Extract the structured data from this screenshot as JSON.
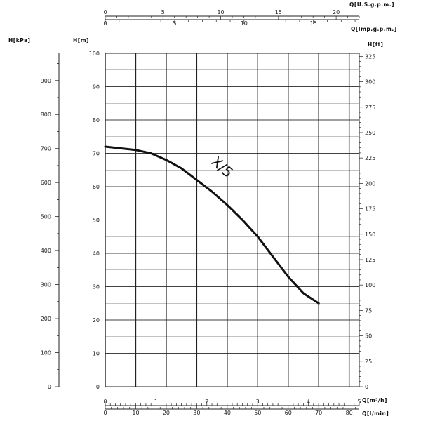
{
  "chart_data": {
    "type": "line",
    "title": "",
    "axes": {
      "head_m": {
        "label": "H[m]",
        "min": 0,
        "max": 100,
        "ticks": [
          0,
          10,
          20,
          30,
          40,
          50,
          60,
          70,
          80,
          90,
          100
        ]
      },
      "head_kpa": {
        "label": "H[kPa]",
        "min": 0,
        "max": 980,
        "ticks": [
          0,
          100,
          200,
          300,
          400,
          500,
          600,
          700,
          800,
          900
        ]
      },
      "head_ft": {
        "label": "H[ft]",
        "min": 0,
        "max": 328,
        "ticks": [
          0,
          25,
          50,
          75,
          100,
          125,
          150,
          175,
          200,
          225,
          250,
          275,
          300,
          325
        ]
      },
      "flow_m3h": {
        "label": "Q[m³/h]",
        "min": 0,
        "max": 5,
        "ticks": [
          0,
          1,
          2,
          3,
          4,
          5
        ]
      },
      "flow_lmin": {
        "label": "Q[l/min]",
        "min": 0,
        "max": 83.3,
        "ticks": [
          0,
          10,
          20,
          30,
          40,
          50,
          60,
          70,
          80
        ]
      },
      "flow_usgpm": {
        "label": "Q[U.S.g.p.m.]",
        "min": 0,
        "max": 22,
        "ticks": [
          0,
          5,
          10,
          15,
          20
        ]
      },
      "flow_impgpm": {
        "label": "Q[Imp.g.p.m.]",
        "min": 0,
        "max": 18.3,
        "ticks": [
          0,
          5,
          10,
          15
        ]
      }
    },
    "grid": true,
    "series": [
      {
        "name": "X/5",
        "x_unit": "l/min",
        "y_unit": "m",
        "x": [
          0,
          5,
          10,
          15,
          20,
          25,
          30,
          35,
          40,
          45,
          50,
          55,
          60,
          65,
          70
        ],
        "y": [
          72,
          71.5,
          71,
          70,
          68,
          65.5,
          62,
          58.5,
          54.5,
          50,
          45,
          39,
          33,
          28,
          25
        ]
      }
    ],
    "colors": {
      "curve": "#111111",
      "grid": "#222222",
      "axis": "#222222"
    }
  }
}
